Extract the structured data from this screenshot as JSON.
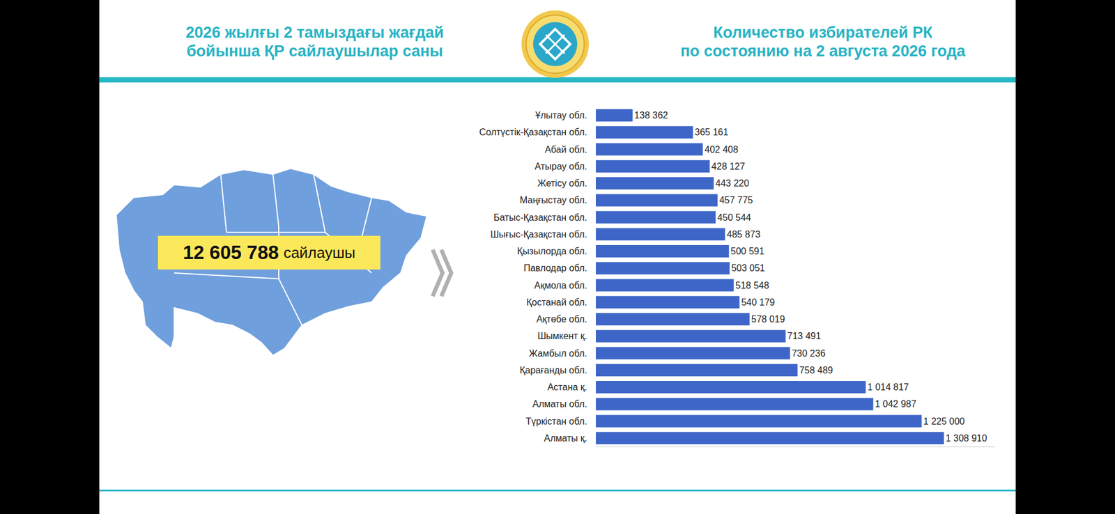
{
  "header": {
    "left": [
      "2026 жылғы 2 тамыздағы жағдай",
      "бойынша ҚР сайлаушылар саны"
    ],
    "right": [
      "Количество избирателей РК",
      "по состоянию на 2 августа 2026 года"
    ]
  },
  "total": {
    "value": "12 605 788",
    "unit": "сайлаушы"
  },
  "chart_data": {
    "type": "bar",
    "orientation": "horizontal",
    "categories": [
      "Ұлытау обл.",
      "Солтүстік-Қазақстан обл.",
      "Абай обл.",
      "Атырау обл.",
      "Жетісу обл.",
      "Маңғыстау обл.",
      "Батыс-Қазақстан обл.",
      "Шығыс-Қазақстан обл.",
      "Қызылорда обл.",
      "Павлодар обл.",
      "Ақмола обл.",
      "Қостанай обл.",
      "Ақтөбе обл.",
      "Шымкент қ.",
      "Жамбыл обл.",
      "Қарағанды обл.",
      "Астана қ.",
      "Алматы обл.",
      "Түркістан обл.",
      "Алматы қ."
    ],
    "values": [
      138362,
      365161,
      402408,
      428127,
      443220,
      457775,
      450544,
      485873,
      500591,
      503051,
      518548,
      540179,
      578019,
      713491,
      730236,
      758489,
      1014817,
      1042987,
      1225000,
      1308910
    ],
    "value_labels": [
      "138 362",
      "365 161",
      "402 408",
      "428 127",
      "443 220",
      "457 775",
      "450 544",
      "485 873",
      "500 591",
      "503 051",
      "518 548",
      "540 179",
      "578 019",
      "713 491",
      "730 236",
      "758 489",
      "1 014 817",
      "1 042 987",
      "1 225 000",
      "1 308 910"
    ],
    "color": "#3e66c8",
    "xlim": [
      0,
      1500000
    ],
    "xticks": [],
    "data_labels": true,
    "tick_labels": "y",
    "grid": false
  }
}
